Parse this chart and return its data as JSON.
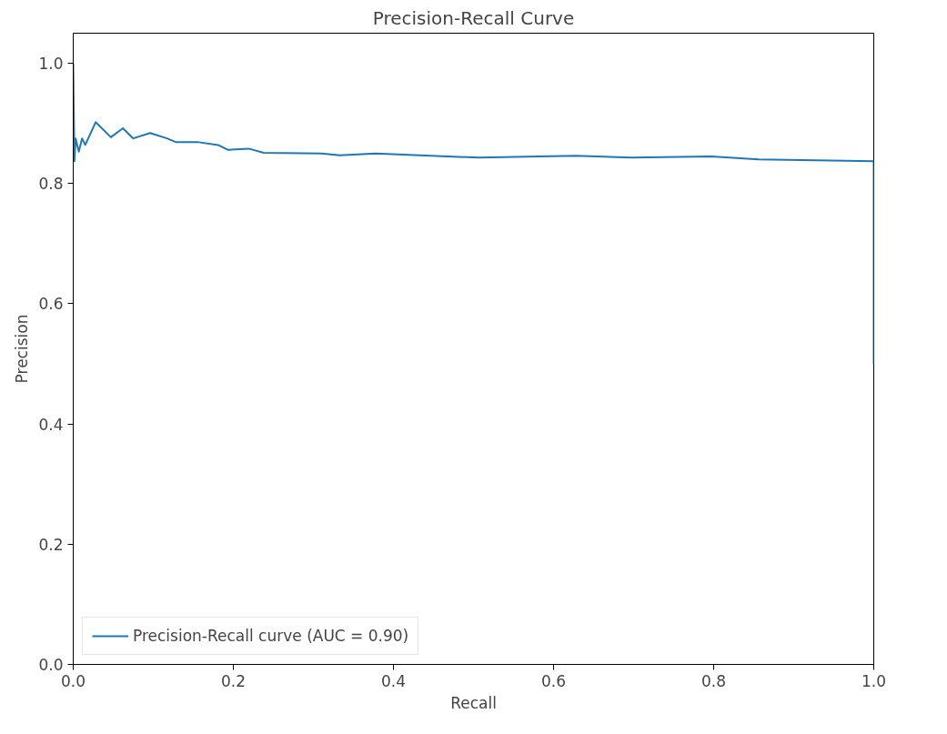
{
  "chart_data": {
    "type": "line",
    "title": "Precision-Recall Curve",
    "xlabel": "Recall",
    "ylabel": "Precision",
    "series": [
      {
        "name": "Precision-Recall curve (AUC = 0.90)",
        "color": "#1f77b4",
        "x": [
          0,
          0.0015,
          0.003,
          0.007,
          0.011,
          0.015,
          0.028,
          0.047,
          0.062,
          0.075,
          0.096,
          0.117,
          0.128,
          0.155,
          0.181,
          0.193,
          0.219,
          0.238,
          0.31,
          0.333,
          0.378,
          0.506,
          0.628,
          0.697,
          0.797,
          0.856,
          1.0,
          1.0
        ],
        "values": [
          1.0,
          0.837,
          0.875,
          0.853,
          0.875,
          0.864,
          0.902,
          0.877,
          0.892,
          0.875,
          0.884,
          0.875,
          0.869,
          0.869,
          0.864,
          0.856,
          0.858,
          0.851,
          0.85,
          0.847,
          0.85,
          0.843,
          0.846,
          0.843,
          0.845,
          0.84,
          0.837,
          0.5
        ]
      }
    ],
    "xlim": [
      0,
      1
    ],
    "ylim": [
      0,
      1.05
    ],
    "xticks": [
      {
        "value": 0,
        "label": "0.0"
      },
      0.2,
      0.4,
      0.6,
      0.8,
      {
        "value": 1,
        "label": "1.0"
      }
    ],
    "yticks": [
      {
        "value": 0,
        "label": "0.0"
      },
      0.2,
      0.4,
      0.6,
      0.8,
      {
        "value": 1,
        "label": "1.0"
      }
    ],
    "grid": false,
    "legend": "bottom left",
    "line_style": "solid",
    "marker": "none"
  }
}
